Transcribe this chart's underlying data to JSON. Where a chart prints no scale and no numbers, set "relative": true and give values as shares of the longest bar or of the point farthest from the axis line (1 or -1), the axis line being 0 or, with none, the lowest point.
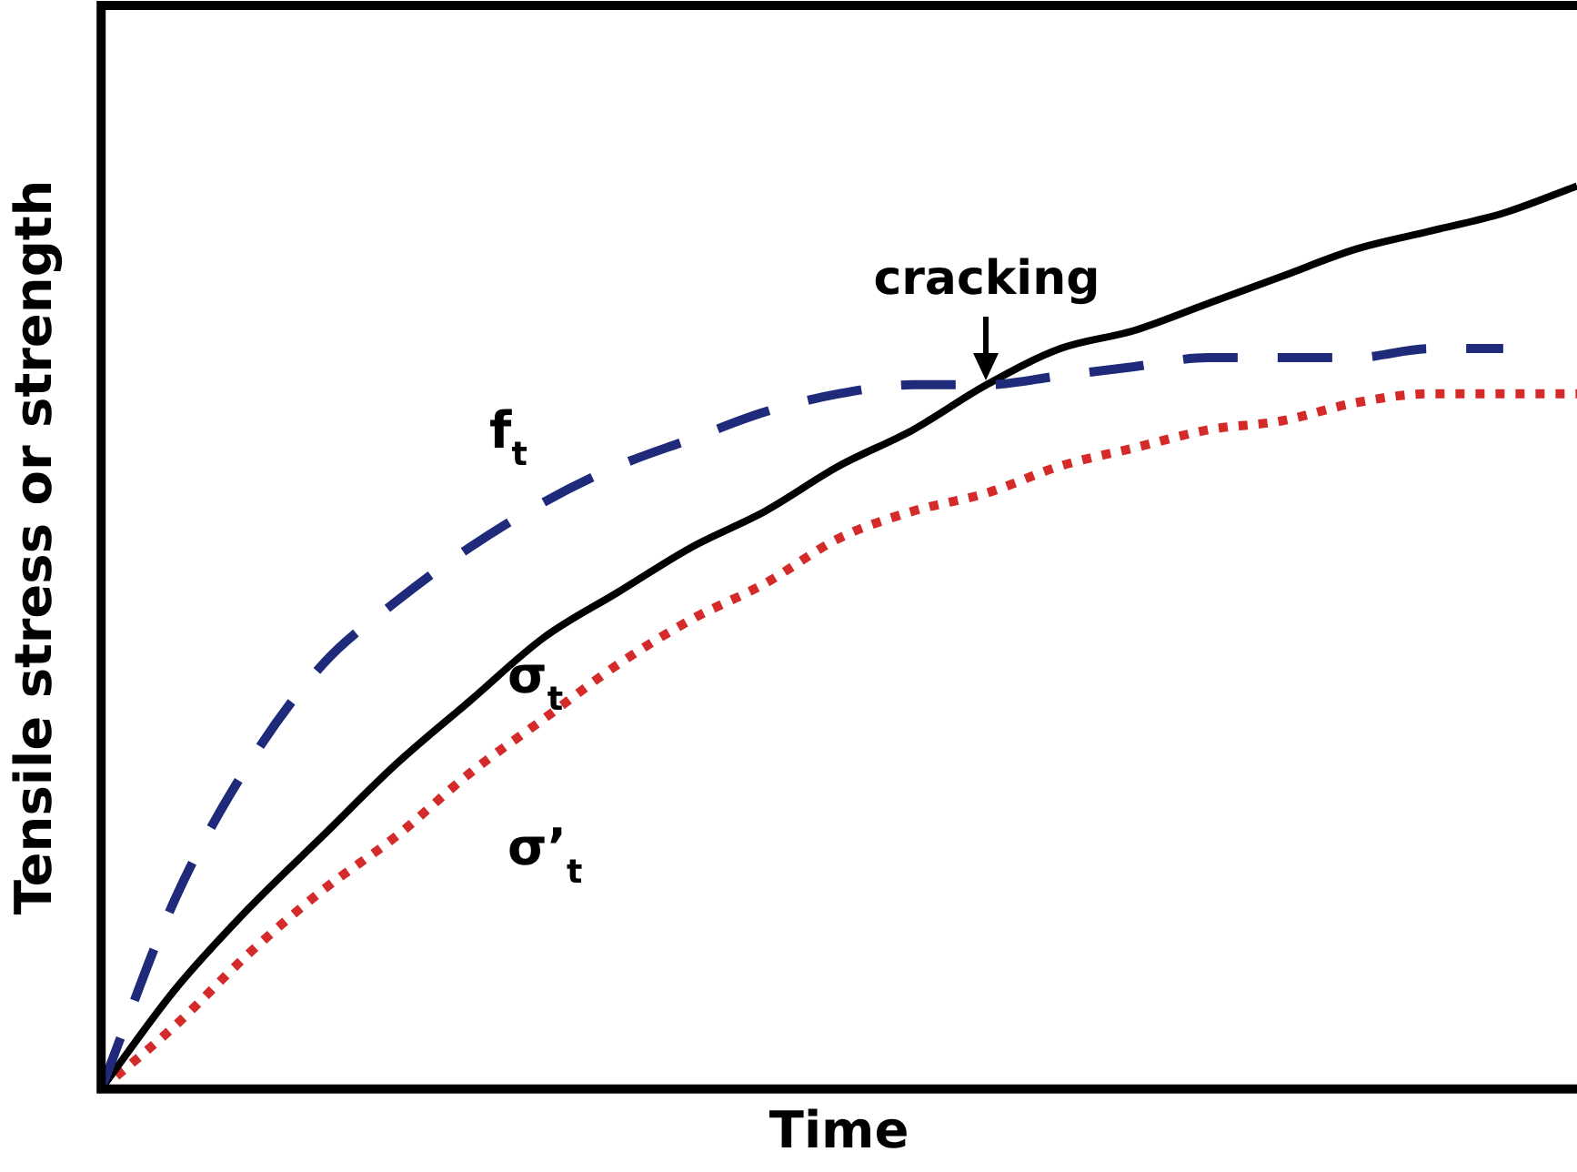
{
  "chart_data": {
    "type": "line",
    "relative": true,
    "xlabel": "Time",
    "ylabel": "Tensile stress or strength",
    "legend": false,
    "grid": false,
    "marker": "none",
    "categories": [
      null,
      null,
      null,
      null,
      null,
      null,
      null,
      null,
      null,
      null,
      null,
      null,
      null,
      null,
      null,
      null,
      null,
      null,
      null,
      null,
      null
    ],
    "series": [
      {
        "name": "f$_{t}$",
        "color": "#1f2a7a",
        "line_style": "dashed",
        "values": [
          0,
          0.21,
          0.36,
          0.47,
          0.54,
          0.6,
          0.65,
          0.69,
          0.72,
          0.75,
          0.77,
          0.78,
          0.78,
          0.79,
          0.8,
          0.81,
          0.81,
          0.81,
          0.82,
          0.82,
          null
        ]
      },
      {
        "name": "σ$_{t}$",
        "color": "#000000",
        "line_style": "solid",
        "values": [
          0,
          0.11,
          0.2,
          0.28,
          0.36,
          0.43,
          0.5,
          0.55,
          0.6,
          0.64,
          0.69,
          0.73,
          0.78,
          0.82,
          0.84,
          0.87,
          0.9,
          0.93,
          0.95,
          0.97,
          1
        ]
      },
      {
        "name": "σ’$_{t}$",
        "color": "#d42a2a",
        "line_style": "dotted",
        "values": [
          0,
          0.07,
          0.15,
          0.22,
          0.28,
          0.35,
          0.41,
          0.47,
          0.52,
          0.56,
          0.61,
          0.64,
          0.66,
          0.69,
          0.71,
          0.73,
          0.74,
          0.76,
          0.77,
          0.77,
          0.77
        ]
      }
    ],
    "annotations": [
      {
        "text": "cracking",
        "y": 0.78
      }
    ]
  }
}
